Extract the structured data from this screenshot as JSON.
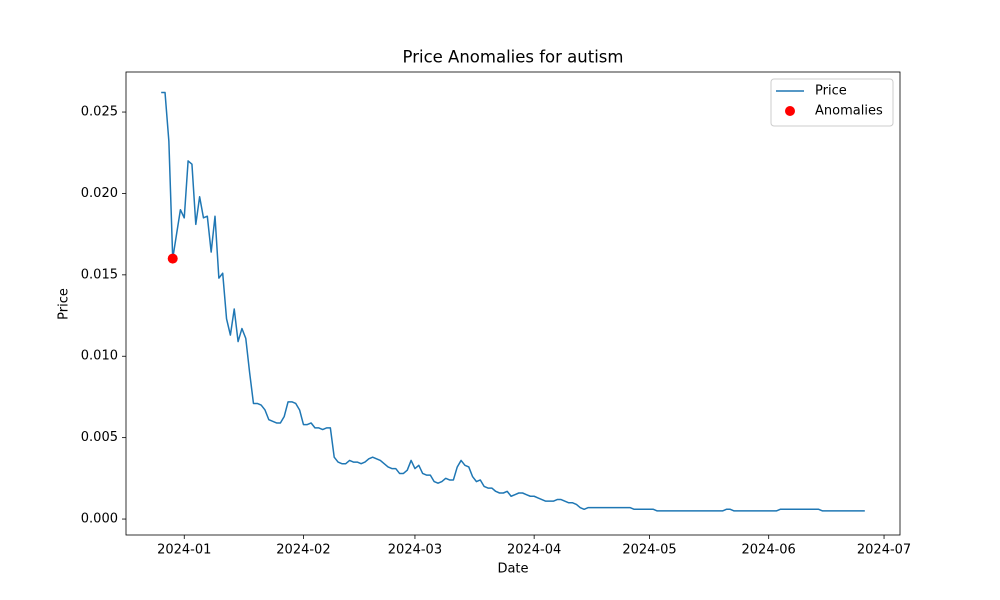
{
  "chart_data": {
    "type": "line",
    "title": "Price Anomalies for autism",
    "xlabel": "Date",
    "ylabel": "Price",
    "x": [
      19717,
      19718,
      19719,
      19720,
      19721,
      19722,
      19723,
      19724,
      19725,
      19726,
      19727,
      19728,
      19729,
      19730,
      19731,
      19732,
      19733,
      19734,
      19735,
      19736,
      19737,
      19738,
      19739,
      19740,
      19741,
      19742,
      19743,
      19744,
      19745,
      19746,
      19747,
      19748,
      19749,
      19750,
      19751,
      19752,
      19753,
      19754,
      19755,
      19756,
      19757,
      19758,
      19759,
      19760,
      19761,
      19762,
      19763,
      19764,
      19765,
      19766,
      19767,
      19768,
      19769,
      19770,
      19771,
      19772,
      19773,
      19774,
      19775,
      19776,
      19777,
      19778,
      19779,
      19780,
      19781,
      19782,
      19783,
      19784,
      19785,
      19786,
      19787,
      19788,
      19789,
      19790,
      19791,
      19792,
      19793,
      19794,
      19795,
      19796,
      19797,
      19798,
      19799,
      19800,
      19801,
      19802,
      19803,
      19804,
      19805,
      19806,
      19807,
      19808,
      19809,
      19810,
      19811,
      19812,
      19813,
      19814,
      19815,
      19816,
      19817,
      19818,
      19819,
      19820,
      19821,
      19822,
      19823,
      19824,
      19825,
      19826,
      19827,
      19828,
      19829,
      19830,
      19831,
      19832,
      19833,
      19834,
      19835,
      19836,
      19837,
      19838,
      19839,
      19840,
      19841,
      19842,
      19843,
      19844,
      19845,
      19846,
      19847,
      19848,
      19849,
      19850,
      19851,
      19852,
      19853,
      19854,
      19855,
      19856,
      19857,
      19858,
      19859,
      19860,
      19861,
      19862,
      19863,
      19864,
      19865,
      19866,
      19867,
      19868,
      19869,
      19870,
      19871,
      19872,
      19873,
      19874,
      19875,
      19876,
      19877,
      19878,
      19879,
      19880,
      19881,
      19882,
      19883,
      19884,
      19885,
      19886,
      19887,
      19888,
      19889,
      19890,
      19891,
      19892,
      19893,
      19894,
      19895,
      19896,
      19897,
      19898,
      19899,
      19900
    ],
    "series": [
      {
        "name": "Price",
        "color": "#1f77b4",
        "values": [
          0.0262,
          0.0262,
          0.0232,
          0.016,
          0.0175,
          0.019,
          0.0185,
          0.022,
          0.0218,
          0.0181,
          0.0198,
          0.0185,
          0.0186,
          0.0164,
          0.0186,
          0.0148,
          0.0151,
          0.0123,
          0.0113,
          0.0129,
          0.0109,
          0.0117,
          0.0111,
          0.009,
          0.0071,
          0.0071,
          0.007,
          0.0067,
          0.0061,
          0.006,
          0.0059,
          0.0059,
          0.0063,
          0.0072,
          0.0072,
          0.0071,
          0.0067,
          0.0058,
          0.0058,
          0.0059,
          0.0056,
          0.0056,
          0.0055,
          0.0056,
          0.0056,
          0.0038,
          0.0035,
          0.0034,
          0.0034,
          0.0036,
          0.0035,
          0.0035,
          0.0034,
          0.0035,
          0.0037,
          0.0038,
          0.0037,
          0.0036,
          0.0034,
          0.0032,
          0.0031,
          0.0031,
          0.0028,
          0.0028,
          0.003,
          0.0036,
          0.0031,
          0.0033,
          0.0028,
          0.0027,
          0.0027,
          0.0023,
          0.0022,
          0.0023,
          0.0025,
          0.0024,
          0.0024,
          0.0032,
          0.0036,
          0.0033,
          0.0032,
          0.0026,
          0.0023,
          0.0024,
          0.002,
          0.0019,
          0.0019,
          0.0017,
          0.0016,
          0.0016,
          0.0017,
          0.0014,
          0.0015,
          0.0016,
          0.0016,
          0.0015,
          0.0014,
          0.0014,
          0.0013,
          0.0012,
          0.0011,
          0.0011,
          0.0011,
          0.0012,
          0.0012,
          0.0011,
          0.001,
          0.001,
          0.0009,
          0.0007,
          0.0006,
          0.0007,
          0.0007,
          0.0007,
          0.0007,
          0.0007,
          0.0007,
          0.0007,
          0.0007,
          0.0007,
          0.0007,
          0.0007,
          0.0007,
          0.0006,
          0.0006,
          0.0006,
          0.0006,
          0.0006,
          0.0006,
          0.0005,
          0.0005,
          0.0005,
          0.0005,
          0.0005,
          0.0005,
          0.0005,
          0.0005,
          0.0005,
          0.0005,
          0.0005,
          0.0005,
          0.0005,
          0.0005,
          0.0005,
          0.0005,
          0.0005,
          0.0005,
          0.0006,
          0.0006,
          0.0005,
          0.0005,
          0.0005,
          0.0005,
          0.0005,
          0.0005,
          0.0005,
          0.0005,
          0.0005,
          0.0005,
          0.0005,
          0.0005,
          0.0006,
          0.0006,
          0.0006,
          0.0006,
          0.0006,
          0.0006,
          0.0006,
          0.0006,
          0.0006,
          0.0006,
          0.0006,
          0.0005,
          0.0005,
          0.0005,
          0.0005,
          0.0005,
          0.0005,
          0.0005,
          0.0005,
          0.0005,
          0.0005,
          0.0005,
          0.0005
        ]
      },
      {
        "name": "Anomalies",
        "color": "red",
        "type": "scatter",
        "x": [
          19720
        ],
        "values": [
          0.016
        ]
      }
    ],
    "xlim": [
      19707.85,
      19909.15
    ],
    "xticks": [
      {
        "value": 19723,
        "label": "2024-01"
      },
      {
        "value": 19754,
        "label": "2024-02"
      },
      {
        "value": 19783,
        "label": "2024-03"
      },
      {
        "value": 19814,
        "label": "2024-04"
      },
      {
        "value": 19844,
        "label": "2024-05"
      },
      {
        "value": 19875,
        "label": "2024-06"
      },
      {
        "value": 19905,
        "label": "2024-07"
      }
    ],
    "ylim": [
      -0.00098,
      0.02746
    ],
    "yticks": [
      {
        "value": 0,
        "label": "0.000"
      },
      {
        "value": 0.005,
        "label": "0.005"
      },
      {
        "value": 0.01,
        "label": "0.010"
      },
      {
        "value": 0.015,
        "label": "0.015"
      },
      {
        "value": 0.02,
        "label": "0.020"
      },
      {
        "value": 0.025,
        "label": "0.025"
      }
    ],
    "legend": "upper right"
  }
}
